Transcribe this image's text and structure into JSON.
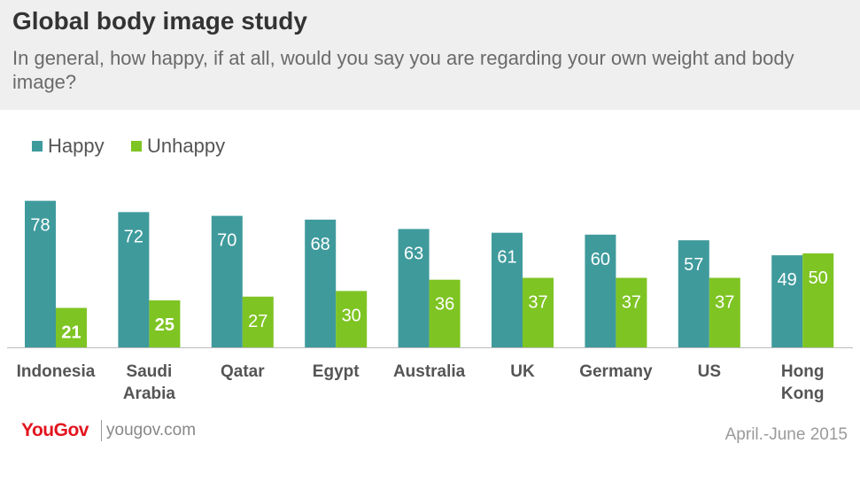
{
  "header": {
    "title": "Global body image study",
    "subtitle": "In general, how happy, if at all, would you say you are regarding your own weight and body image?"
  },
  "legend": [
    {
      "label": "Happy",
      "color": "#3f9a9c"
    },
    {
      "label": "Unhappy",
      "color": "#7ec423"
    }
  ],
  "chart_data": {
    "type": "bar",
    "title": "Global body image study",
    "subtitle": "In general, how happy, if at all, would you say you are regarding your own weight and body image?",
    "categories": [
      [
        "Indonesia"
      ],
      [
        "Saudi",
        "Arabia"
      ],
      [
        "Qatar"
      ],
      [
        "Egypt"
      ],
      [
        "Australia"
      ],
      [
        "UK"
      ],
      [
        "Germany"
      ],
      [
        "US"
      ],
      [
        "Hong",
        "Kong"
      ]
    ],
    "series": [
      {
        "name": "Happy",
        "color": "#3f9a9c",
        "values": [
          78,
          72,
          70,
          68,
          63,
          61,
          60,
          57,
          49
        ]
      },
      {
        "name": "Unhappy",
        "color": "#7ec423",
        "values": [
          21,
          25,
          27,
          30,
          36,
          37,
          37,
          37,
          50
        ]
      }
    ],
    "bold_labels": {
      "Unhappy": [
        0,
        1
      ]
    },
    "ylim": [
      0,
      85
    ],
    "grid": false,
    "legend_position": "top-left"
  },
  "footer": {
    "logo": "YouGov",
    "site": "yougov.com",
    "date": "April.-June 2015"
  }
}
